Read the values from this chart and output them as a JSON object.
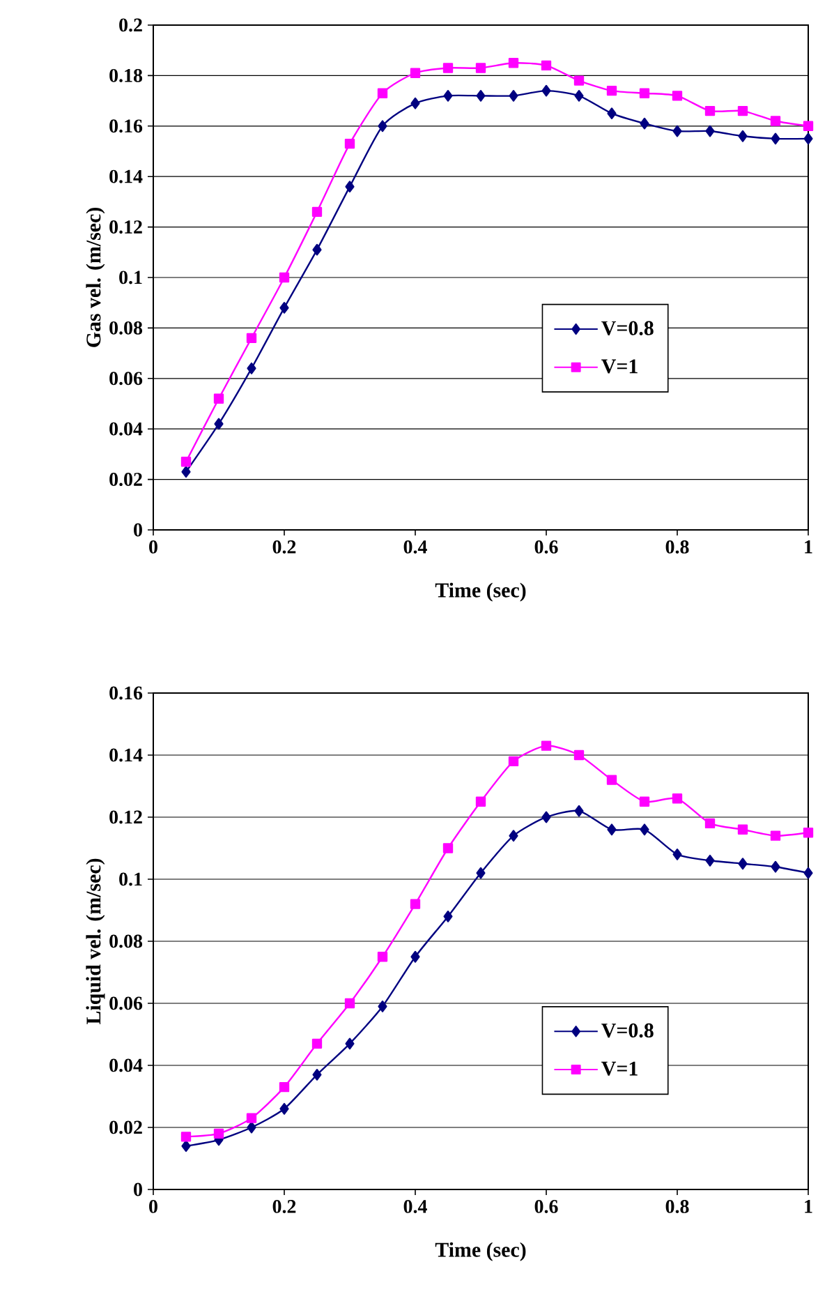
{
  "chart_data": [
    {
      "type": "line",
      "xlabel": "Time (sec)",
      "ylabel": "Gas vel. (m/sec)",
      "xlim": [
        0,
        1
      ],
      "ylim": [
        0,
        0.2
      ],
      "xticks": [
        0,
        0.2,
        0.4,
        0.6,
        0.8,
        1
      ],
      "yticks": [
        0,
        0.02,
        0.04,
        0.06,
        0.08,
        0.1,
        0.12,
        0.14,
        0.16,
        0.18,
        0.2
      ],
      "grid": "y",
      "legend": "right",
      "x": [
        0.05,
        0.1,
        0.15,
        0.2,
        0.25,
        0.3,
        0.35,
        0.4,
        0.45,
        0.5,
        0.55,
        0.6,
        0.65,
        0.7,
        0.75,
        0.8,
        0.85,
        0.9,
        0.95,
        1
      ],
      "series": [
        {
          "name": "V=0.8",
          "color": "#000080",
          "marker": "diamond",
          "values": [
            0.023,
            0.042,
            0.064,
            0.088,
            0.111,
            0.136,
            0.16,
            0.169,
            0.172,
            0.172,
            0.172,
            0.174,
            0.172,
            0.165,
            0.161,
            0.158,
            0.158,
            0.156,
            0.155,
            0.155
          ]
        },
        {
          "name": "V=1",
          "color": "#ff00ff",
          "marker": "square",
          "values": [
            0.027,
            0.052,
            0.076,
            0.1,
            0.126,
            0.153,
            0.173,
            0.181,
            0.183,
            0.183,
            0.185,
            0.184,
            0.178,
            0.174,
            0.173,
            0.172,
            0.166,
            0.166,
            0.162,
            0.16
          ]
        }
      ]
    },
    {
      "type": "line",
      "xlabel": "Time (sec)",
      "ylabel": "Liquid vel. (m/sec)",
      "xlim": [
        0,
        1
      ],
      "ylim": [
        0,
        0.16
      ],
      "xticks": [
        0,
        0.2,
        0.4,
        0.6,
        0.8,
        1
      ],
      "yticks": [
        0,
        0.02,
        0.04,
        0.06,
        0.08,
        0.1,
        0.12,
        0.14,
        0.16
      ],
      "grid": "y",
      "legend": "bottom right",
      "x": [
        0.05,
        0.1,
        0.15,
        0.2,
        0.25,
        0.3,
        0.35,
        0.4,
        0.45,
        0.5,
        0.55,
        0.6,
        0.65,
        0.7,
        0.75,
        0.8,
        0.85,
        0.9,
        0.95,
        1
      ],
      "series": [
        {
          "name": "V=0.8",
          "color": "#000080",
          "marker": "diamond",
          "values": [
            0.014,
            0.016,
            0.02,
            0.026,
            0.037,
            0.047,
            0.059,
            0.075,
            0.088,
            0.102,
            0.114,
            0.12,
            0.122,
            0.116,
            0.116,
            0.108,
            0.106,
            0.105,
            0.104,
            0.102
          ]
        },
        {
          "name": "V=1",
          "color": "#ff00ff",
          "marker": "square",
          "values": [
            0.017,
            0.018,
            0.023,
            0.033,
            0.047,
            0.06,
            0.075,
            0.092,
            0.11,
            0.125,
            0.138,
            0.143,
            0.14,
            0.132,
            0.125,
            0.126,
            0.118,
            0.116,
            0.114,
            0.115
          ]
        }
      ]
    }
  ]
}
